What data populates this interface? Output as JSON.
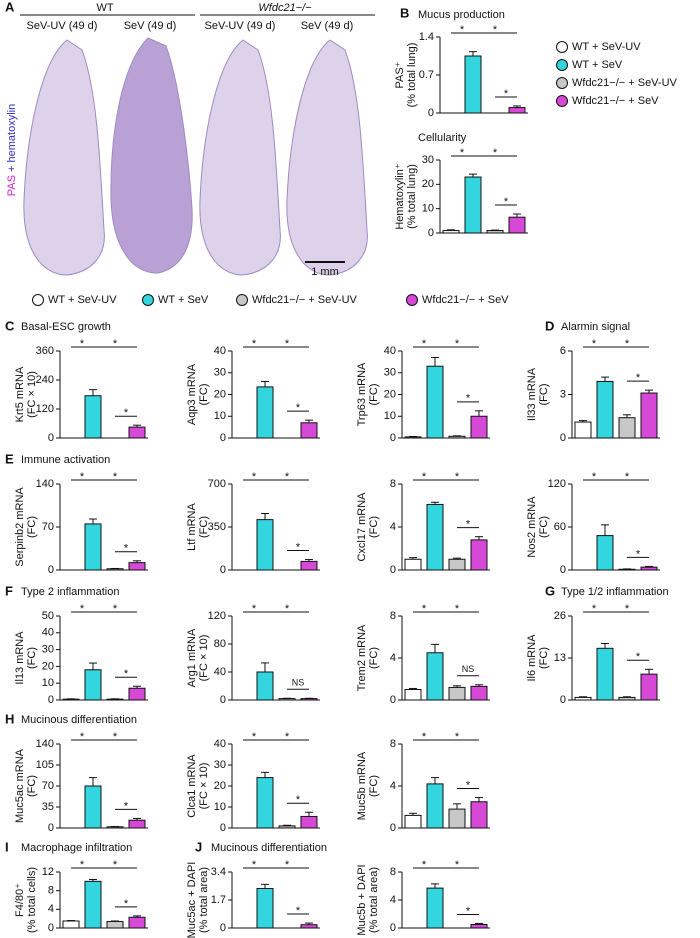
{
  "panel_a": {
    "groups": [
      "WT",
      "Wfdc21−/−"
    ],
    "conditions": [
      "SeV-UV (49 d)",
      "SeV (49 d)",
      "SeV-UV (49 d)",
      "SeV (49 d)"
    ],
    "stain": [
      "PAS",
      "+ hematoxylin"
    ],
    "scale": "1 mm"
  },
  "groups": [
    {
      "name": "WT + SeV-UV",
      "color": "#ffffff"
    },
    {
      "name": "WT + SeV",
      "color": "#33d6de"
    },
    {
      "name": "Wfdc21−/− + SeV-UV",
      "color": "#c8c8c8"
    },
    {
      "name": "Wfdc21−/− + SeV",
      "color": "#d648d6"
    }
  ],
  "panels": [
    {
      "label": "A"
    },
    {
      "label": "B"
    },
    {
      "label": "C",
      "title": "Basal-ESC growth"
    },
    {
      "label": "D",
      "title": "Alarmin signal"
    },
    {
      "label": "E",
      "title": "Immune activation"
    },
    {
      "label": "F",
      "title": "Type 2 inflammation"
    },
    {
      "label": "G",
      "title": "Type 1/2 inflammation"
    },
    {
      "label": "H",
      "title": "Mucinous differentiation"
    },
    {
      "label": "I",
      "title": "Macrophage infiltration"
    },
    {
      "label": "J",
      "title": "Mucinous differentiation"
    }
  ],
  "chart_data": [
    {
      "type": "bar",
      "title": "Mucus production",
      "ylabel": [
        "PAS⁺",
        "(% total lung)"
      ],
      "values": [
        0,
        1.05,
        0,
        0.1
      ],
      "errors": [
        0,
        0.08,
        0,
        0.03
      ],
      "ylim": [
        0,
        1.4
      ],
      "yticks": [
        0,
        0.7,
        1.4
      ],
      "sig": [
        "*",
        "*",
        "*"
      ]
    },
    {
      "type": "bar",
      "title": "Cellularity",
      "ylabel": [
        "Hematoxylin⁺",
        "(% total lung)"
      ],
      "values": [
        1,
        23,
        1,
        6.5
      ],
      "errors": [
        0.3,
        1.2,
        0.2,
        1.3
      ],
      "ylim": [
        0,
        30
      ],
      "yticks": [
        0,
        10,
        20,
        30
      ],
      "sig": [
        "*",
        "*",
        "*"
      ]
    },
    {
      "type": "bar",
      "ylabel": [
        "Krt5 mRNA",
        "(FC × 10)"
      ],
      "values": [
        0,
        175,
        0,
        45
      ],
      "errors": [
        0,
        25,
        0,
        8
      ],
      "ylim": [
        0,
        360
      ],
      "yticks": [
        0,
        120,
        240,
        360
      ],
      "sig": [
        "*",
        "*",
        "*"
      ]
    },
    {
      "type": "bar",
      "ylabel": [
        "Aqp3 mRNA",
        "(FC)"
      ],
      "values": [
        0,
        23.5,
        0,
        7
      ],
      "errors": [
        0,
        2.5,
        0,
        1.2
      ],
      "ylim": [
        0,
        40
      ],
      "yticks": [
        0,
        10,
        20,
        30,
        40
      ],
      "sig": [
        "*",
        "*",
        "*"
      ]
    },
    {
      "type": "bar",
      "ylabel": [
        "Trp63 mRNA",
        "(FC)"
      ],
      "values": [
        0.5,
        33,
        0.8,
        10
      ],
      "errors": [
        0.2,
        4,
        0.2,
        2.5
      ],
      "ylim": [
        0,
        40
      ],
      "yticks": [
        0,
        10,
        20,
        30,
        40
      ],
      "sig": [
        "*",
        "*",
        "*"
      ]
    },
    {
      "type": "bar",
      "ylabel": [
        "Il33 mRNA",
        "(FC)"
      ],
      "values": [
        1.1,
        3.9,
        1.4,
        3.1
      ],
      "errors": [
        0.1,
        0.3,
        0.2,
        0.2
      ],
      "ylim": [
        0,
        6
      ],
      "yticks": [
        0,
        3,
        6
      ],
      "sig": [
        "*",
        "*",
        "*"
      ]
    },
    {
      "type": "bar",
      "ylabel": [
        "Serpinb2 mRNA",
        "(FC)"
      ],
      "values": [
        0,
        75,
        2,
        12
      ],
      "errors": [
        0,
        8,
        0.5,
        3
      ],
      "ylim": [
        0,
        140
      ],
      "yticks": [
        0,
        70,
        140
      ],
      "sig": [
        "*",
        "*",
        "*"
      ]
    },
    {
      "type": "bar",
      "ylabel": [
        "Ltf mRNA",
        "(FC)"
      ],
      "values": [
        0,
        410,
        0,
        70
      ],
      "errors": [
        0,
        50,
        0,
        15
      ],
      "ylim": [
        0,
        700
      ],
      "yticks": [
        0,
        350,
        700
      ],
      "sig": [
        "*",
        "*",
        "*"
      ]
    },
    {
      "type": "bar",
      "ylabel": [
        "Cxcl17 mRNA",
        "(FC)"
      ],
      "values": [
        1,
        6.1,
        1,
        2.8
      ],
      "errors": [
        0.15,
        0.2,
        0.1,
        0.3
      ],
      "ylim": [
        0,
        8
      ],
      "yticks": [
        0,
        4,
        8
      ],
      "sig": [
        "*",
        "*",
        "*"
      ]
    },
    {
      "type": "bar",
      "ylabel": [
        "Nos2 mRNA",
        "(FC)"
      ],
      "values": [
        0,
        48,
        1,
        4
      ],
      "errors": [
        0,
        15,
        0.5,
        1
      ],
      "ylim": [
        0,
        120
      ],
      "yticks": [
        0,
        60,
        120
      ],
      "sig": [
        "*",
        "*",
        "*"
      ]
    },
    {
      "type": "bar",
      "ylabel": [
        "Il13 mRNA",
        "(FC)"
      ],
      "values": [
        0.5,
        18,
        0.5,
        7
      ],
      "errors": [
        0.2,
        4,
        0.2,
        1.2
      ],
      "ylim": [
        0,
        50
      ],
      "yticks": [
        0,
        10,
        20,
        30,
        40,
        50
      ],
      "sig": [
        "*",
        "*",
        "*"
      ]
    },
    {
      "type": "bar",
      "ylabel": [
        "Arg1 mRNA",
        "(FC × 10)"
      ],
      "values": [
        0,
        40,
        2,
        2
      ],
      "errors": [
        0,
        13,
        0.5,
        0.5
      ],
      "ylim": [
        0,
        120
      ],
      "yticks": [
        0,
        40,
        80,
        120
      ],
      "sig": [
        "*",
        "*",
        "NS"
      ]
    },
    {
      "type": "bar",
      "ylabel": [
        "Trem2 mRNA",
        "(FC)"
      ],
      "values": [
        1,
        4.5,
        1.2,
        1.3
      ],
      "errors": [
        0.1,
        0.8,
        0.15,
        0.15
      ],
      "ylim": [
        0,
        8
      ],
      "yticks": [
        0,
        4,
        8
      ],
      "sig": [
        "*",
        "*",
        "NS"
      ]
    },
    {
      "type": "bar",
      "ylabel": [
        "Il6 mRNA",
        "(FC)"
      ],
      "values": [
        0.8,
        16,
        0.8,
        8
      ],
      "errors": [
        0.2,
        1.5,
        0.2,
        1.5
      ],
      "ylim": [
        0,
        26
      ],
      "yticks": [
        0,
        13,
        26
      ],
      "sig": [
        "*",
        "*",
        "*"
      ]
    },
    {
      "type": "bar",
      "ylabel": [
        "Muc5ac mRNA",
        "(FC)"
      ],
      "values": [
        0,
        70,
        2,
        13
      ],
      "errors": [
        0,
        14,
        0.5,
        3
      ],
      "ylim": [
        0,
        140
      ],
      "yticks": [
        0,
        35,
        70,
        105,
        140
      ],
      "sig": [
        "*",
        "*",
        "*"
      ]
    },
    {
      "type": "bar",
      "ylabel": [
        "Clca1 mRNA",
        "(FC × 10)"
      ],
      "values": [
        0,
        24,
        1,
        5.5
      ],
      "errors": [
        0,
        2.5,
        0.3,
        2
      ],
      "ylim": [
        0,
        40
      ],
      "yticks": [
        0,
        10,
        20,
        30,
        40
      ],
      "sig": [
        "*",
        "*",
        "*"
      ]
    },
    {
      "type": "bar",
      "ylabel": [
        "Muc5b mRNA",
        "(FC)"
      ],
      "values": [
        1.2,
        4.2,
        1.8,
        2.5
      ],
      "errors": [
        0.2,
        0.6,
        0.5,
        0.4
      ],
      "ylim": [
        0,
        8
      ],
      "yticks": [
        0,
        4,
        8
      ],
      "sig": [
        "*",
        "*",
        "*"
      ]
    },
    {
      "type": "bar",
      "ylabel": [
        "F4/80⁺",
        "(% total cells)"
      ],
      "values": [
        1.5,
        10,
        1.4,
        2.3
      ],
      "errors": [
        0.1,
        0.4,
        0.1,
        0.3
      ],
      "ylim": [
        0,
        12
      ],
      "yticks": [
        0,
        4,
        8,
        12
      ],
      "sig": [
        "*",
        "*",
        "*"
      ]
    },
    {
      "type": "bar",
      "ylabel": [
        "Muc5ac + DAPI",
        "(% total area)"
      ],
      "values": [
        0,
        2.4,
        0,
        0.2
      ],
      "errors": [
        0,
        0.25,
        0,
        0.1
      ],
      "ylim": [
        0,
        3.4
      ],
      "yticks": [
        0,
        1.7,
        3.4
      ],
      "sig": [
        "*",
        "*",
        "*"
      ]
    },
    {
      "type": "bar",
      "ylabel": [
        "Muc5b + DAPI",
        "(% total area)"
      ],
      "values": [
        0,
        5.7,
        0,
        0.5
      ],
      "errors": [
        0,
        0.6,
        0,
        0.15
      ],
      "ylim": [
        0,
        8
      ],
      "yticks": [
        0,
        4,
        8
      ],
      "sig": [
        "*",
        "*",
        "*"
      ]
    }
  ]
}
